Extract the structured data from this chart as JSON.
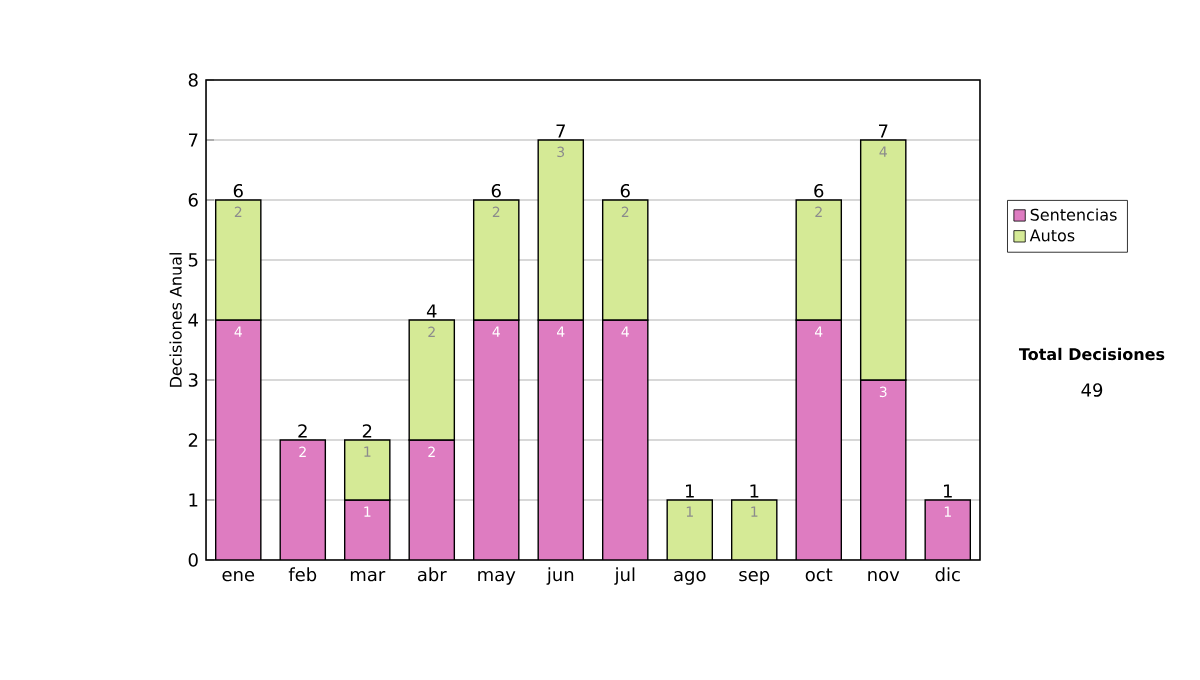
{
  "chart_data": {
    "type": "bar",
    "stacked": true,
    "categories": [
      "ene",
      "feb",
      "mar",
      "abr",
      "may",
      "jun",
      "jul",
      "ago",
      "sep",
      "oct",
      "nov",
      "dic"
    ],
    "series": [
      {
        "name": "Sentencias",
        "color": "#de7cc1",
        "values": [
          4,
          2,
          1,
          2,
          4,
          4,
          4,
          null,
          null,
          4,
          3,
          1
        ]
      },
      {
        "name": "Autos",
        "color": "#d5ea96",
        "values": [
          2,
          null,
          1,
          2,
          2,
          3,
          2,
          1,
          1,
          2,
          4,
          null
        ]
      }
    ],
    "ylabel": "Decisiones Anual",
    "ylim": [
      0,
      8
    ],
    "yticks": [
      0,
      1,
      2,
      3,
      4,
      5,
      6,
      7,
      8
    ],
    "grid": "y",
    "legend": "right",
    "data_labels": true,
    "totals": [
      "6",
      "2",
      "2",
      "4",
      "6",
      "7",
      "6",
      "1",
      "1",
      "6",
      "7",
      "1"
    ],
    "annotations": [
      "Total Decisiones",
      "49"
    ]
  }
}
